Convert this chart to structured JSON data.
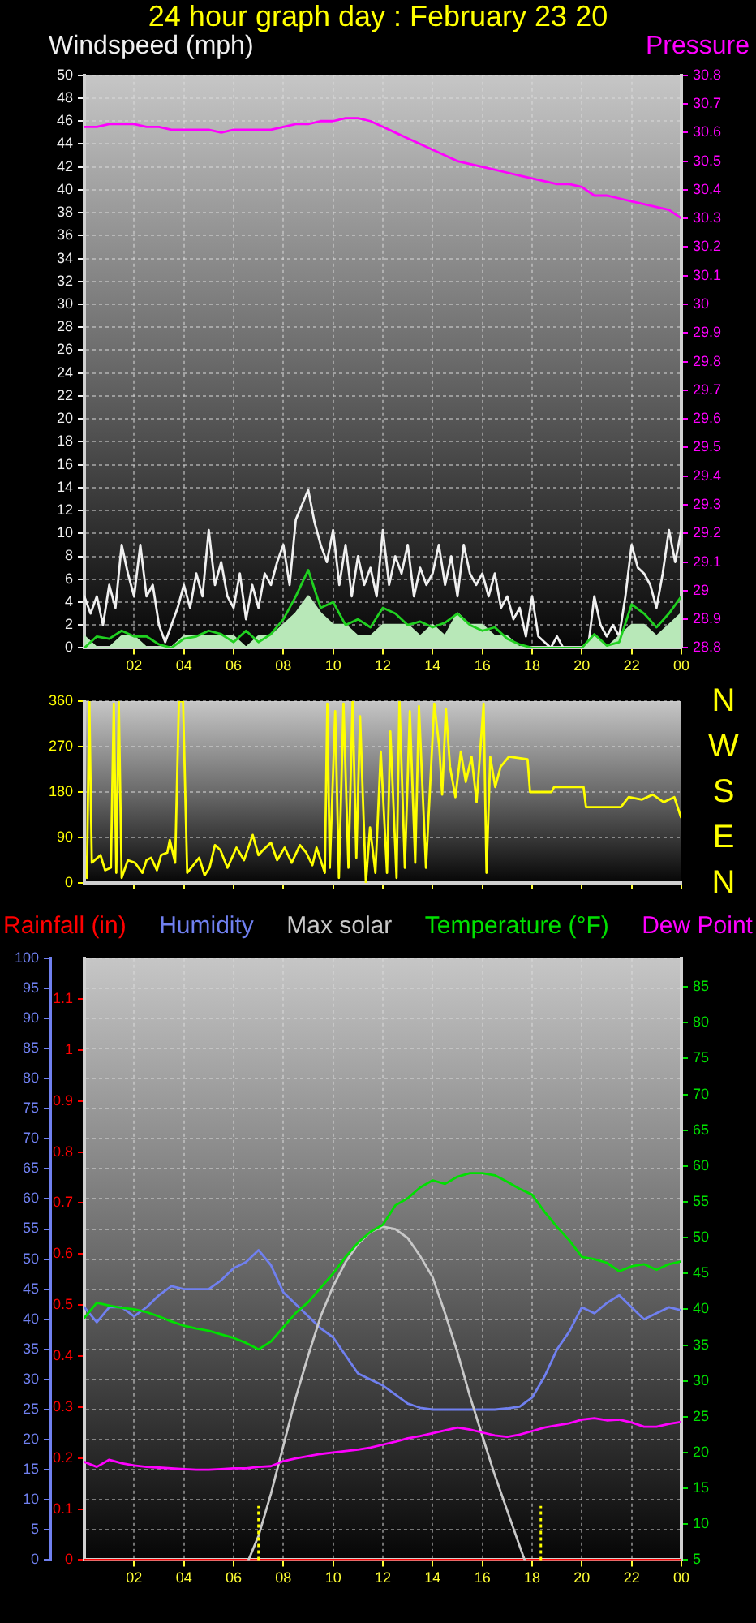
{
  "chart_data": [
    {
      "type": "line",
      "title": "24 hour graph day : February 23 20",
      "ylabel": "Windspeed (mph)",
      "y2label": "Pressure",
      "x": [
        "--02-23T00:00",
        "--02-23T00:30",
        "--02-23T01:00",
        "--02-23T01:30",
        "--02-23T02:00",
        "--02-23T02:30",
        "--02-23T03:00",
        "--02-23T03:30",
        "--02-23T04:00",
        "--02-23T04:30",
        "--02-23T05:00",
        "--02-23T05:30",
        "--02-23T06:00",
        "--02-23T06:30",
        "--02-23T07:00",
        "--02-23T07:30",
        "--02-23T08:00",
        "--02-23T08:30",
        "--02-23T09:00",
        "--02-23T09:30",
        "--02-23T10:00",
        "--02-23T10:30",
        "--02-23T11:00",
        "--02-23T11:30",
        "--02-23T12:00",
        "--02-23T12:30",
        "--02-23T13:00",
        "--02-23T13:30",
        "--02-23T14:00",
        "--02-23T14:30",
        "--02-23T15:00",
        "--02-23T15:30",
        "--02-23T16:00",
        "--02-23T16:30",
        "--02-23T17:00",
        "--02-23T17:30",
        "--02-23T18:00",
        "--02-23T18:30",
        "--02-23T19:00",
        "--02-23T19:30",
        "--02-23T20:00",
        "--02-23T20:30",
        "--02-23T21:00",
        "--02-23T21:30",
        "--02-23T22:00",
        "--02-23T22:30",
        "--02-23T23:00",
        "--02-23T23:30",
        "--02-24T00:00"
      ],
      "xlim": [
        "--02-23T00:00",
        "--02-24T00:00"
      ],
      "xticks": [
        {
          "value": "--02-23T02:00",
          "label": "02"
        },
        {
          "value": "--02-23T04:00",
          "label": "04"
        },
        {
          "value": "--02-23T06:00",
          "label": "06"
        },
        {
          "value": "--02-23T08:00",
          "label": "08"
        },
        {
          "value": "--02-23T10:00",
          "label": "10"
        },
        {
          "value": "--02-23T12:00",
          "label": "12"
        },
        {
          "value": "--02-23T14:00",
          "label": "14"
        },
        {
          "value": "--02-23T16:00",
          "label": "16"
        },
        {
          "value": "--02-23T18:00",
          "label": "18"
        },
        {
          "value": "--02-23T20:00",
          "label": "20"
        },
        {
          "value": "--02-23T22:00",
          "label": "22"
        },
        {
          "value": "--02-24T00:00",
          "label": "00"
        }
      ],
      "ylim": [
        0,
        50
      ],
      "yticks": [
        0,
        2,
        4,
        6,
        8,
        10,
        12,
        14,
        16,
        18,
        20,
        22,
        24,
        26,
        28,
        30,
        32,
        34,
        36,
        38,
        40,
        42,
        44,
        46,
        48,
        50
      ],
      "y2lim": [
        28.8,
        30.8
      ],
      "y2ticks": [
        28.8,
        28.9,
        29,
        29.1,
        29.2,
        29.3,
        29.4,
        29.5,
        29.6,
        29.7,
        29.8,
        29.9,
        30,
        30.1,
        30.2,
        30.3,
        30.4,
        30.5,
        30.6,
        30.7,
        30.8
      ],
      "grid": true,
      "series": [
        {
          "color": "#f0f0f0",
          "x": [
            "--02-23T00:00",
            "--02-23T00:15",
            "--02-23T00:30",
            "--02-23T00:45",
            "--02-23T01:00",
            "--02-23T01:15",
            "--02-23T01:30",
            "--02-23T01:45",
            "--02-23T02:00",
            "--02-23T02:15",
            "--02-23T02:30",
            "--02-23T02:45",
            "--02-23T03:00",
            "--02-23T03:15",
            "--02-23T03:30",
            "--02-23T03:45",
            "--02-23T04:00",
            "--02-23T04:15",
            "--02-23T04:30",
            "--02-23T04:45",
            "--02-23T05:00",
            "--02-23T05:15",
            "--02-23T05:30",
            "--02-23T05:45",
            "--02-23T06:00",
            "--02-23T06:15",
            "--02-23T06:30",
            "--02-23T06:45",
            "--02-23T07:00",
            "--02-23T07:15",
            "--02-23T07:30",
            "--02-23T07:45",
            "--02-23T08:00",
            "--02-23T08:15",
            "--02-23T08:30",
            "--02-23T08:45",
            "--02-23T09:00",
            "--02-23T09:15",
            "--02-23T09:30",
            "--02-23T09:45",
            "--02-23T10:00",
            "--02-23T10:15",
            "--02-23T10:30",
            "--02-23T10:45",
            "--02-23T11:00",
            "--02-23T11:15",
            "--02-23T11:30",
            "--02-23T11:45",
            "--02-23T12:00",
            "--02-23T12:15",
            "--02-23T12:30",
            "--02-23T12:45",
            "--02-23T13:00",
            "--02-23T13:15",
            "--02-23T13:30",
            "--02-23T13:45",
            "--02-23T14:00",
            "--02-23T14:15",
            "--02-23T14:30",
            "--02-23T14:45",
            "--02-23T15:00",
            "--02-23T15:15",
            "--02-23T15:30",
            "--02-23T15:45",
            "--02-23T16:00",
            "--02-23T16:15",
            "--02-23T16:30",
            "--02-23T16:45",
            "--02-23T17:00",
            "--02-23T17:15",
            "--02-23T17:30",
            "--02-23T17:45",
            "--02-23T18:00",
            "--02-23T18:15",
            "--02-23T18:30",
            "--02-23T18:45",
            "--02-23T19:00",
            "--02-23T19:15",
            "--02-23T19:30",
            "--02-23T19:45",
            "--02-23T20:00",
            "--02-23T20:15",
            "--02-23T20:30",
            "--02-23T20:45",
            "--02-23T21:00",
            "--02-23T21:15",
            "--02-23T21:30",
            "--02-23T21:45",
            "--02-23T22:00",
            "--02-23T22:15",
            "--02-23T22:30",
            "--02-23T22:45",
            "--02-23T23:00",
            "--02-23T23:15",
            "--02-23T23:30",
            "--02-23T23:45",
            "--02-24T00:00"
          ],
          "values": [
            4.5,
            3,
            4.5,
            2,
            5.5,
            3.5,
            9,
            6.5,
            4.5,
            9,
            4.5,
            5.5,
            2,
            0.5,
            2,
            3.5,
            5.5,
            3.5,
            6.5,
            4.5,
            10.3,
            5.5,
            7.5,
            4.5,
            3.5,
            6.5,
            2.5,
            5.5,
            3.5,
            6.5,
            5.5,
            7.5,
            9,
            5.5,
            11.2,
            12.5,
            13.8,
            11,
            9,
            7.5,
            10.3,
            5.5,
            9,
            4.5,
            8,
            5.5,
            7,
            4.5,
            10.3,
            5.5,
            8,
            6.5,
            9,
            4.5,
            7,
            5.5,
            6.5,
            9,
            5.5,
            8,
            4.5,
            9,
            6.5,
            5.5,
            6.5,
            4.5,
            6.5,
            3.5,
            4.5,
            2.5,
            3.5,
            1,
            4.5,
            1,
            0.5,
            0,
            1,
            0,
            0,
            0,
            0,
            0,
            4.5,
            2,
            1,
            2,
            1,
            4.5,
            9,
            7,
            6.5,
            5.5,
            3.5,
            6.5,
            10.3,
            7.5,
            10.3
          ]
        },
        {
          "type": "area",
          "color": "#b8e8b8",
          "values": [
            1,
            0,
            0,
            1,
            1,
            0,
            0,
            0,
            1,
            1,
            1,
            1,
            1,
            0,
            1,
            1,
            2,
            3,
            4.5,
            3,
            2,
            2,
            1,
            1,
            2,
            2,
            2,
            1,
            2,
            1,
            3,
            2,
            2,
            1,
            1,
            0,
            0,
            0,
            0,
            0,
            0,
            1,
            0,
            1,
            2,
            2,
            1,
            2,
            3
          ]
        },
        {
          "color": "#20d020",
          "values": [
            0,
            1,
            0.8,
            1.5,
            1,
            1,
            0.3,
            0,
            0.8,
            1,
            1.5,
            1.2,
            0.5,
            1.5,
            0.5,
            1.2,
            2.5,
            4.5,
            6.8,
            3.5,
            4,
            2,
            2.5,
            1.8,
            3.5,
            3,
            2,
            2.3,
            1.8,
            2.2,
            3,
            2,
            1.5,
            1.8,
            0.8,
            0.3,
            0,
            0,
            0,
            0,
            0,
            1.2,
            0.2,
            0.5,
            3.8,
            3,
            1.8,
            3,
            4.5
          ]
        },
        {
          "color": "#ff00ff",
          "axis": "y2",
          "values": [
            30.62,
            30.62,
            30.63,
            30.63,
            30.63,
            30.62,
            30.62,
            30.61,
            30.61,
            30.61,
            30.61,
            30.6,
            30.61,
            30.61,
            30.61,
            30.61,
            30.62,
            30.63,
            30.63,
            30.64,
            30.64,
            30.65,
            30.65,
            30.64,
            30.62,
            30.6,
            30.58,
            30.56,
            30.54,
            30.52,
            30.5,
            30.49,
            30.48,
            30.47,
            30.46,
            30.45,
            30.44,
            30.43,
            30.42,
            30.42,
            30.41,
            30.38,
            30.38,
            30.37,
            30.36,
            30.35,
            30.34,
            30.33,
            30.3
          ]
        }
      ]
    },
    {
      "type": "line",
      "xlim": [
        "--02-23T00:00",
        "--02-24T00:00"
      ],
      "xticks": [
        {
          "value": "--02-23T02:00",
          "label": null
        },
        {
          "value": "--02-23T04:00",
          "label": null
        },
        {
          "value": "--02-23T06:00",
          "label": null
        },
        {
          "value": "--02-23T08:00",
          "label": null
        },
        {
          "value": "--02-23T10:00",
          "label": null
        },
        {
          "value": "--02-23T12:00",
          "label": null
        },
        {
          "value": "--02-23T14:00",
          "label": null
        },
        {
          "value": "--02-23T16:00",
          "label": null
        },
        {
          "value": "--02-23T18:00",
          "label": null
        },
        {
          "value": "--02-23T20:00",
          "label": null
        },
        {
          "value": "--02-23T22:00",
          "label": null
        },
        {
          "value": "--02-24T00:00",
          "label": null
        }
      ],
      "ylim": [
        0,
        360
      ],
      "yticks": [
        0,
        90,
        180,
        270,
        360
      ],
      "annotations": [
        "N",
        "W",
        "S",
        "E",
        "N"
      ],
      "tick_labels": "y",
      "grid": "y",
      "series": [
        {
          "color": "#ffff00",
          "x": [
            "--02-23T00:06",
            "--02-23T00:12",
            "--02-23T00:18",
            "--02-23T00:39",
            "--02-23T00:50",
            "--02-23T01:04",
            "--02-23T01:11",
            "--02-23T01:17",
            "--02-23T01:23",
            "--02-23T01:30",
            "--02-23T01:45",
            "--02-23T02:02",
            "--02-23T02:20",
            "--02-23T02:30",
            "--02-23T02:41",
            "--02-23T02:55",
            "--02-23T03:05",
            "--02-23T03:20",
            "--02-23T03:26",
            "--02-23T03:39",
            "--02-23T03:48",
            "--02-23T03:58",
            "--02-23T04:08",
            "--02-23T04:37",
            "--02-23T04:50",
            "--02-23T05:02",
            "--02-23T05:15",
            "--02-23T05:28",
            "--02-23T05:45",
            "--02-23T06:07",
            "--02-23T06:25",
            "--02-23T06:46",
            "--02-23T07:00",
            "--02-23T07:11",
            "--02-23T07:30",
            "--02-23T07:45",
            "--02-23T08:03",
            "--02-23T08:20",
            "--02-23T08:40",
            "--02-23T08:55",
            "--02-23T09:10",
            "--02-23T09:20",
            "--02-23T09:40",
            "--02-23T09:46",
            "--02-23T09:52",
            "--02-23T10:05",
            "--02-23T10:14",
            "--02-23T10:25",
            "--02-23T10:37",
            "--02-23T10:47",
            "--02-23T10:56",
            "--02-23T11:05",
            "--02-23T11:19",
            "--02-23T11:29",
            "--02-23T11:42",
            "--02-23T11:55",
            "--02-23T12:10",
            "--02-23T12:18",
            "--02-23T12:33",
            "--02-23T12:40",
            "--02-23T12:53",
            "--02-23T13:05",
            "--02-23T13:18",
            "--02-23T13:27",
            "--02-23T13:44",
            "--02-23T14:04",
            "--02-23T14:16",
            "--02-23T14:23",
            "--02-23T14:32",
            "--02-23T14:42",
            "--02-23T14:55",
            "--02-23T15:08",
            "--02-23T15:20",
            "--02-23T15:34",
            "--02-23T15:46",
            "--02-23T16:03",
            "--02-23T16:10",
            "--02-23T16:19",
            "--02-23T16:31",
            "--02-23T16:44",
            "--02-23T17:04",
            "--02-23T17:49",
            "--02-23T17:55",
            "--02-23T18:47",
            "--02-23T18:53",
            "--02-23T20:04",
            "--02-23T20:10",
            "--02-23T21:34",
            "--02-23T21:53",
            "--02-23T22:25",
            "--02-23T22:51",
            "--02-23T23:17",
            "--02-23T23:43",
            "--02-23T23:59"
          ],
          "values": [
            10,
            360,
            40,
            55,
            25,
            30,
            355,
            20,
            360,
            10,
            45,
            40,
            20,
            45,
            50,
            25,
            55,
            60,
            85,
            40,
            360,
            360,
            20,
            50,
            15,
            30,
            75,
            65,
            30,
            70,
            45,
            95,
            55,
            65,
            80,
            45,
            70,
            40,
            75,
            60,
            35,
            70,
            20,
            355,
            30,
            340,
            10,
            355,
            30,
            360,
            50,
            330,
            0,
            110,
            20,
            260,
            20,
            300,
            10,
            360,
            30,
            340,
            40,
            350,
            30,
            355,
            270,
            175,
            345,
            230,
            170,
            260,
            200,
            250,
            160,
            355,
            20,
            250,
            190,
            230,
            250,
            245,
            180,
            180,
            190,
            190,
            150,
            150,
            170,
            165,
            175,
            160,
            170,
            130
          ]
        }
      ]
    },
    {
      "type": "line",
      "legend": "top",
      "x": [
        "--02-23T00:00",
        "--02-23T00:30",
        "--02-23T01:00",
        "--02-23T01:30",
        "--02-23T02:00",
        "--02-23T02:30",
        "--02-23T03:00",
        "--02-23T03:30",
        "--02-23T04:00",
        "--02-23T04:30",
        "--02-23T05:00",
        "--02-23T05:30",
        "--02-23T06:00",
        "--02-23T06:30",
        "--02-23T07:00",
        "--02-23T07:30",
        "--02-23T08:00",
        "--02-23T08:30",
        "--02-23T09:00",
        "--02-23T09:30",
        "--02-23T10:00",
        "--02-23T10:30",
        "--02-23T11:00",
        "--02-23T11:30",
        "--02-23T12:00",
        "--02-23T12:30",
        "--02-23T13:00",
        "--02-23T13:30",
        "--02-23T14:00",
        "--02-23T14:30",
        "--02-23T15:00",
        "--02-23T15:30",
        "--02-23T16:00",
        "--02-23T16:30",
        "--02-23T17:00",
        "--02-23T17:30",
        "--02-23T18:00",
        "--02-23T18:30",
        "--02-23T19:00",
        "--02-23T19:30",
        "--02-23T20:00",
        "--02-23T20:30",
        "--02-23T21:00",
        "--02-23T21:30",
        "--02-23T22:00",
        "--02-23T22:30",
        "--02-23T23:00",
        "--02-23T23:30",
        "--02-24T00:00"
      ],
      "xlim": [
        "--02-23T00:00",
        "--02-24T00:00"
      ],
      "xticks": [
        {
          "value": "--02-23T02:00",
          "label": "02"
        },
        {
          "value": "--02-23T04:00",
          "label": "04"
        },
        {
          "value": "--02-23T06:00",
          "label": "06"
        },
        {
          "value": "--02-23T08:00",
          "label": "08"
        },
        {
          "value": "--02-23T10:00",
          "label": "10"
        },
        {
          "value": "--02-23T12:00",
          "label": "12"
        },
        {
          "value": "--02-23T14:00",
          "label": "14"
        },
        {
          "value": "--02-23T16:00",
          "label": "16"
        },
        {
          "value": "--02-23T18:00",
          "label": "18"
        },
        {
          "value": "--02-23T20:00",
          "label": "20"
        },
        {
          "value": "--02-23T22:00",
          "label": "22"
        },
        {
          "value": "--02-24T00:00",
          "label": "00"
        }
      ],
      "ylim": [
        0,
        100
      ],
      "yticks": [
        0,
        5,
        10,
        15,
        20,
        25,
        30,
        35,
        40,
        45,
        50,
        55,
        60,
        65,
        70,
        75,
        80,
        85,
        90,
        95,
        100
      ],
      "y2lim": [
        5,
        89
      ],
      "y2ticks": [
        5,
        10,
        15,
        20,
        25,
        30,
        35,
        40,
        45,
        50,
        55,
        60,
        65,
        70,
        75,
        80,
        85
      ],
      "y3lim": [
        0,
        1.18
      ],
      "y3ticks": [
        0,
        0.1,
        0.2,
        0.3,
        0.4,
        0.5,
        0.6,
        0.7,
        0.8,
        0.9,
        1,
        1.1
      ],
      "grid": true,
      "ref_lines": [
        {
          "axis": "x",
          "value": "--02-23T07:00",
          "color": "#ffff00",
          "line_style": "dotted"
        },
        {
          "axis": "x",
          "value": "--02-23T18:21",
          "color": "#ffff00",
          "line_style": "dotted"
        }
      ],
      "series": [
        {
          "name": "Rainfall (in)",
          "color": "#ff0000",
          "axis": "y3",
          "values": [
            0,
            0,
            0,
            0,
            0,
            0,
            0,
            0,
            0,
            0,
            0,
            0,
            0,
            0,
            0,
            0,
            0,
            0,
            0,
            0,
            0,
            0,
            0,
            0,
            0,
            0,
            0,
            0,
            0,
            0,
            0,
            0,
            0,
            0,
            0,
            0,
            0,
            0,
            0,
            0,
            0,
            0,
            0,
            0,
            0,
            0,
            0,
            0,
            0
          ]
        },
        {
          "name": "Humidity",
          "color": "#7080f0",
          "values": [
            42,
            39.5,
            42,
            42,
            40.5,
            42,
            44,
            45.5,
            45,
            45,
            45,
            46.5,
            48.5,
            49.5,
            51.5,
            49,
            44.5,
            42.5,
            40.5,
            38.5,
            37,
            34,
            31,
            30,
            29,
            27.5,
            26,
            25.3,
            25,
            25,
            25,
            25,
            25,
            25,
            25.2,
            25.5,
            27,
            30.5,
            35,
            38,
            42,
            41,
            42.7,
            44,
            42,
            40,
            41,
            42,
            41.5
          ]
        },
        {
          "name": "Max solar",
          "color": "#c8c8c8",
          "x": [
            "--02-23T06:36",
            "--02-23T07:00",
            "--02-23T07:30",
            "--02-23T08:00",
            "--02-23T08:30",
            "--02-23T09:00",
            "--02-23T09:30",
            "--02-23T10:00",
            "--02-23T10:30",
            "--02-23T11:00",
            "--02-23T11:30",
            "--02-23T12:00",
            "--02-23T12:30",
            "--02-23T13:00",
            "--02-23T13:30",
            "--02-23T14:00",
            "--02-23T14:30",
            "--02-23T15:00",
            "--02-23T15:30",
            "--02-23T16:00",
            "--02-23T16:30",
            "--02-23T17:00",
            "--02-23T17:30",
            "--02-23T17:42"
          ],
          "values": [
            0,
            4,
            11,
            19,
            27,
            34,
            40.5,
            45.5,
            49.5,
            52.5,
            54.5,
            55.4,
            55,
            53.5,
            50.5,
            47,
            41,
            34.5,
            27.2,
            20.6,
            14.1,
            8.2,
            2.3,
            0
          ]
        },
        {
          "name": "Temperature (°F)",
          "color": "#00e000",
          "axis": "y2",
          "values": [
            38.8,
            40.9,
            40.5,
            40.2,
            40,
            39.6,
            39,
            38.3,
            37.7,
            37.3,
            37,
            36.5,
            36,
            35.3,
            34.4,
            35.5,
            37.5,
            39.5,
            41,
            43,
            45,
            47.3,
            49.3,
            50.8,
            51.8,
            54.5,
            55.5,
            57,
            58,
            57.5,
            58.5,
            59,
            59,
            58.7,
            57.8,
            56.8,
            56,
            53.6,
            51.5,
            49.6,
            47.3,
            47,
            46.5,
            45.3,
            46,
            46.3,
            45.5,
            46.3,
            46.7
          ]
        },
        {
          "name": "Dew Point",
          "color": "#ff00ff",
          "axis": "y2",
          "values": [
            18.7,
            18,
            19,
            18.5,
            18.2,
            18,
            17.9,
            17.8,
            17.7,
            17.6,
            17.6,
            17.7,
            17.8,
            17.8,
            18,
            18.1,
            18.8,
            19.2,
            19.5,
            19.8,
            20,
            20.2,
            20.4,
            20.7,
            21.1,
            21.5,
            22,
            22.3,
            22.7,
            23.1,
            23.5,
            23.2,
            22.8,
            22.4,
            22.2,
            22.5,
            23,
            23.5,
            23.8,
            24.1,
            24.6,
            24.8,
            24.5,
            24.6,
            24.2,
            23.6,
            23.6,
            24,
            24.3
          ]
        }
      ]
    }
  ]
}
